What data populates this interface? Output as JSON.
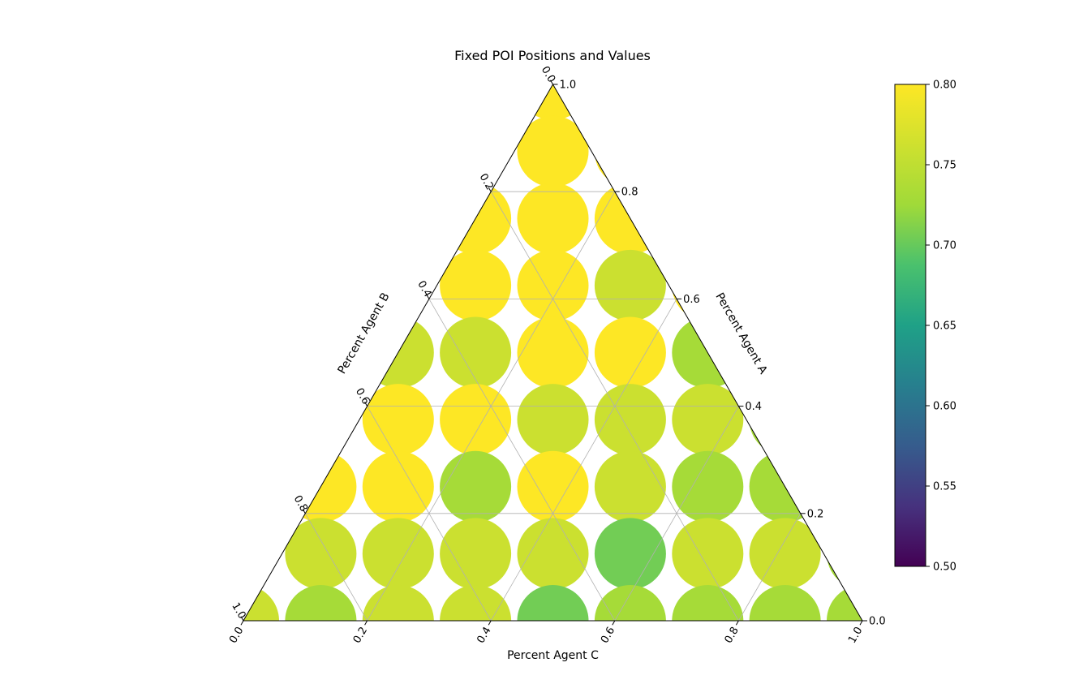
{
  "chart_data": {
    "type": "ternary-scatter",
    "title": "Fixed POI Positions and Values",
    "axis_a_label": "Percent Agent A",
    "axis_b_label": "Percent Agent B",
    "axis_c_label": "Percent Agent C",
    "a_ticks": [
      "0.0",
      "0.2",
      "0.4",
      "0.6",
      "0.8",
      "1.0"
    ],
    "b_ticks": [
      "0.0",
      "0.2",
      "0.4",
      "0.6",
      "0.8",
      "1.0"
    ],
    "c_ticks": [
      "0.0",
      "0.2",
      "0.4",
      "0.6",
      "0.8",
      "1.0"
    ],
    "grid": true,
    "colormap": "viridis",
    "colorbar": {
      "range": [
        0.5,
        0.8
      ],
      "ticks": [
        "0.50",
        "0.55",
        "0.60",
        "0.65",
        "0.70",
        "0.75",
        "0.80"
      ]
    },
    "point_fields": [
      "a",
      "c",
      "value"
    ],
    "points": [
      [
        1.0,
        0.0,
        0.8
      ],
      [
        0.875,
        0.0625,
        0.8
      ],
      [
        0.875,
        0.1875,
        0.8
      ],
      [
        0.75,
        0.0,
        0.8
      ],
      [
        0.75,
        0.125,
        0.8
      ],
      [
        0.75,
        0.25,
        0.8
      ],
      [
        0.625,
        0.0625,
        0.8
      ],
      [
        0.625,
        0.1875,
        0.8
      ],
      [
        0.625,
        0.3125,
        0.76
      ],
      [
        0.625,
        0.4375,
        0.8
      ],
      [
        0.5,
        0.0,
        0.76
      ],
      [
        0.5,
        0.125,
        0.76
      ],
      [
        0.5,
        0.25,
        0.8
      ],
      [
        0.5,
        0.375,
        0.8
      ],
      [
        0.5,
        0.5,
        0.73
      ],
      [
        0.375,
        0.0625,
        0.8
      ],
      [
        0.375,
        0.1875,
        0.8
      ],
      [
        0.375,
        0.3125,
        0.76
      ],
      [
        0.375,
        0.4375,
        0.76
      ],
      [
        0.375,
        0.5625,
        0.76
      ],
      [
        0.375,
        0.6875,
        0.73
      ],
      [
        0.25,
        0.0,
        0.8
      ],
      [
        0.25,
        0.125,
        0.8
      ],
      [
        0.25,
        0.25,
        0.73
      ],
      [
        0.25,
        0.375,
        0.8
      ],
      [
        0.25,
        0.5,
        0.76
      ],
      [
        0.25,
        0.625,
        0.73
      ],
      [
        0.25,
        0.75,
        0.73
      ],
      [
        0.125,
        0.0625,
        0.76
      ],
      [
        0.125,
        0.1875,
        0.76
      ],
      [
        0.125,
        0.3125,
        0.76
      ],
      [
        0.125,
        0.4375,
        0.76
      ],
      [
        0.125,
        0.5625,
        0.705
      ],
      [
        0.125,
        0.6875,
        0.76
      ],
      [
        0.125,
        0.8125,
        0.76
      ],
      [
        0.125,
        0.9375,
        0.73
      ],
      [
        0.0,
        0.0,
        0.76
      ],
      [
        0.0,
        0.125,
        0.73
      ],
      [
        0.0,
        0.25,
        0.76
      ],
      [
        0.0,
        0.375,
        0.76
      ],
      [
        0.0,
        0.5,
        0.705
      ],
      [
        0.0,
        0.625,
        0.73
      ],
      [
        0.0,
        0.75,
        0.73
      ],
      [
        0.0,
        0.875,
        0.73
      ],
      [
        0.0,
        1.0,
        0.73
      ]
    ]
  }
}
